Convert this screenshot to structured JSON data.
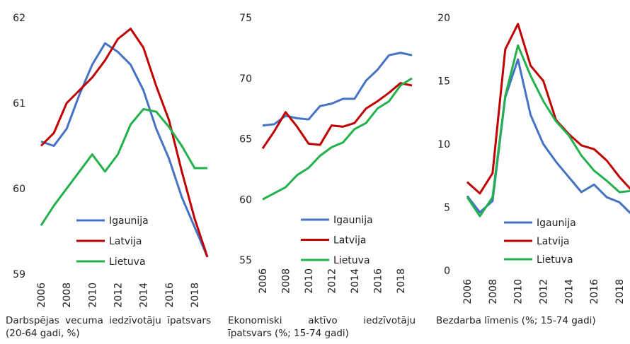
{
  "chart_data": [
    {
      "type": "line",
      "title": "Darbspējas vecuma iedzīvotāju īpatsvars (20-64 gadi, %)",
      "x": [
        2006,
        2007,
        2008,
        2009,
        2010,
        2011,
        2012,
        2013,
        2014,
        2015,
        2016,
        2017,
        2018,
        2019
      ],
      "xlim": [
        2006,
        2019
      ],
      "xticks": [
        2006,
        2008,
        2010,
        2012,
        2014,
        2016,
        2018
      ],
      "ylim": [
        59,
        62
      ],
      "yticks": [
        59,
        60,
        61,
        62
      ],
      "legend": "bottom",
      "series": [
        {
          "name": "Igaunija",
          "color": "#4472c4",
          "values": [
            60.55,
            60.5,
            60.7,
            61.1,
            61.45,
            61.7,
            61.6,
            61.45,
            61.15,
            60.7,
            60.35,
            59.9,
            59.55,
            59.2
          ]
        },
        {
          "name": "Latvija",
          "color": "#c00000",
          "values": [
            60.5,
            60.65,
            61.0,
            61.15,
            61.3,
            61.5,
            61.75,
            61.87,
            61.65,
            61.2,
            60.8,
            60.2,
            59.65,
            59.2
          ]
        },
        {
          "name": "Lietuva",
          "color": "#22b14c",
          "values": [
            59.57,
            59.8,
            60.0,
            60.2,
            60.4,
            60.2,
            60.4,
            60.75,
            60.93,
            60.9,
            60.72,
            60.5,
            60.24,
            60.24
          ]
        }
      ]
    },
    {
      "type": "line",
      "title": "Ekonomiski aktīvo iedzīvotāju īpatsvars (%; 15-74 gadi)",
      "x": [
        2006,
        2007,
        2008,
        2009,
        2010,
        2011,
        2012,
        2013,
        2014,
        2015,
        2016,
        2017,
        2018,
        2019
      ],
      "xlim": [
        2006,
        2019
      ],
      "xticks": [
        2006,
        2008,
        2010,
        2012,
        2014,
        2016,
        2018
      ],
      "ylim": [
        55,
        75
      ],
      "yticks": [
        55,
        60,
        65,
        70,
        75
      ],
      "legend": "bottom",
      "series": [
        {
          "name": "Igaunija",
          "color": "#4472c4",
          "values": [
            66.1,
            66.2,
            66.9,
            66.7,
            66.6,
            67.7,
            67.9,
            68.3,
            68.3,
            69.8,
            70.7,
            71.9,
            72.1,
            71.9
          ]
        },
        {
          "name": "Latvija",
          "color": "#c00000",
          "values": [
            64.2,
            65.6,
            67.2,
            66.0,
            64.6,
            64.5,
            66.1,
            66.0,
            66.3,
            67.5,
            68.1,
            68.8,
            69.6,
            69.4
          ]
        },
        {
          "name": "Lietuva",
          "color": "#22b14c",
          "values": [
            60.0,
            60.5,
            61.0,
            62.0,
            62.6,
            63.6,
            64.3,
            64.7,
            65.8,
            66.3,
            67.5,
            68.1,
            69.4,
            70.0
          ]
        }
      ]
    },
    {
      "type": "line",
      "title": "Bezdarba līmenis (%; 15-74 gadi)",
      "x": [
        2006,
        2007,
        2008,
        2009,
        2010,
        2011,
        2012,
        2013,
        2014,
        2015,
        2016,
        2017,
        2018,
        2019
      ],
      "xlim": [
        2006,
        2019
      ],
      "xticks": [
        2006,
        2008,
        2010,
        2012,
        2014,
        2016,
        2018
      ],
      "ylim": [
        0,
        20
      ],
      "yticks": [
        0,
        5,
        10,
        15,
        20
      ],
      "legend": "bottom",
      "series": [
        {
          "name": "Igaunija",
          "color": "#4472c4",
          "values": [
            5.9,
            4.6,
            5.5,
            13.7,
            16.7,
            12.3,
            10.0,
            8.6,
            7.4,
            6.2,
            6.8,
            5.8,
            5.4,
            4.4
          ]
        },
        {
          "name": "Latvija",
          "color": "#c00000",
          "values": [
            7.0,
            6.1,
            7.7,
            17.5,
            19.5,
            16.2,
            15.0,
            11.9,
            10.8,
            9.9,
            9.6,
            8.7,
            7.4,
            6.3
          ]
        },
        {
          "name": "Lietuva",
          "color": "#22b14c",
          "values": [
            5.8,
            4.3,
            5.8,
            13.8,
            17.8,
            15.4,
            13.4,
            11.8,
            10.7,
            9.1,
            7.9,
            7.1,
            6.2,
            6.3
          ]
        }
      ]
    }
  ]
}
